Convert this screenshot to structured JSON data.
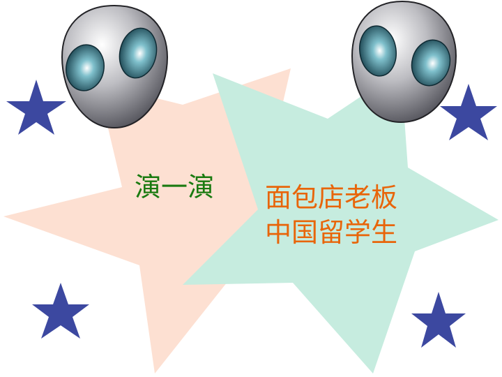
{
  "slide": {
    "title": "演一演",
    "roles": [
      "面包店老板",
      "中国留学生"
    ]
  },
  "colors": {
    "title_text": "#1a7a10",
    "role_text": "#e8650a",
    "peach_star": "#fde0d2",
    "mint_star": "#c6ecdf",
    "small_star": "#3c48a0",
    "alien_head": "#c0c0c4",
    "alien_eye": "#2e7486"
  },
  "icons": [
    "alien-head-icon",
    "star-icon"
  ]
}
